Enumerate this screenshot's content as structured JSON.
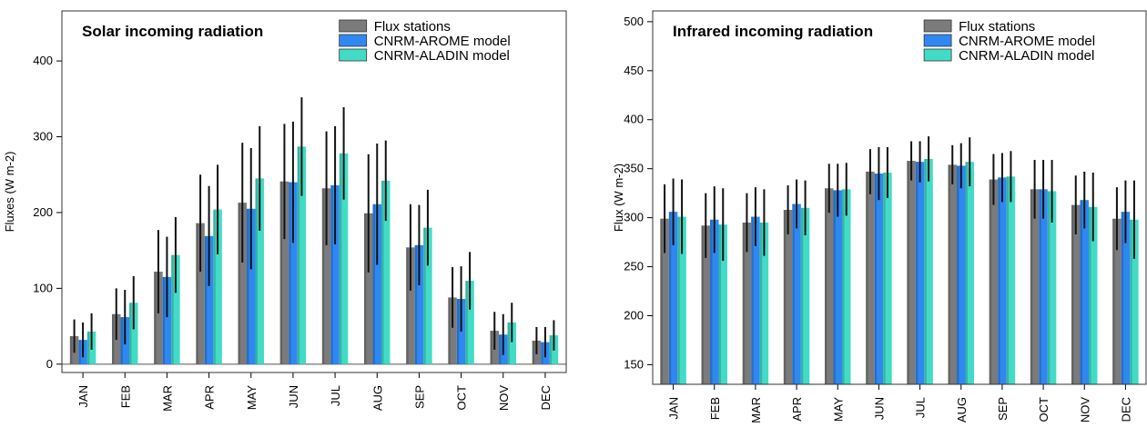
{
  "chart_data": [
    {
      "type": "bar",
      "title": "Solar incoming radiation",
      "ylabel": "Fluxes (W m-2)",
      "categories": [
        "JAN",
        "FEB",
        "MAR",
        "APR",
        "MAY",
        "JUN",
        "JUL",
        "AUG",
        "SEP",
        "OCT",
        "NOV",
        "DEC"
      ],
      "series": [
        {
          "name": "Flux stations",
          "color": "#7b7b7b",
          "values": [
            37,
            66,
            122,
            186,
            213,
            241,
            232,
            199,
            154,
            88,
            44,
            31
          ],
          "errors": [
            22,
            34,
            55,
            64,
            79,
            76,
            75,
            78,
            57,
            40,
            25,
            18
          ]
        },
        {
          "name": "CNRM-AROME model",
          "color": "#2f88f2",
          "values": [
            32,
            62,
            115,
            169,
            205,
            240,
            236,
            211,
            157,
            86,
            39,
            29
          ],
          "errors": [
            23,
            36,
            53,
            66,
            80,
            80,
            78,
            80,
            53,
            43,
            27,
            20
          ]
        },
        {
          "name": "CNRM-ALADIN model",
          "color": "#42dcc6",
          "values": [
            43,
            81,
            144,
            204,
            245,
            287,
            278,
            242,
            180,
            110,
            55,
            38
          ],
          "errors": [
            24,
            35,
            50,
            59,
            69,
            65,
            61,
            53,
            50,
            38,
            26,
            20
          ]
        }
      ],
      "ylim": [
        -11,
        466
      ],
      "yticks": [
        0,
        100,
        200,
        300,
        400
      ],
      "legend": "upper right"
    },
    {
      "type": "bar",
      "title": "Infrared incoming radiation",
      "ylabel": "Flux (W m-2)",
      "categories": [
        "JAN",
        "FEB",
        "MAR",
        "APR",
        "MAY",
        "JUN",
        "JUL",
        "AUG",
        "SEP",
        "OCT",
        "NOV",
        "DEC"
      ],
      "series": [
        {
          "name": "Flux stations",
          "color": "#7b7b7b",
          "values": [
            299,
            292,
            295,
            308,
            330,
            347,
            358,
            354,
            339,
            329,
            313,
            299
          ],
          "errors": [
            35,
            33,
            30,
            25,
            25,
            23,
            20,
            20,
            26,
            30,
            30,
            32
          ]
        },
        {
          "name": "CNRM-AROME model",
          "color": "#2f88f2",
          "values": [
            306,
            298,
            301,
            314,
            328,
            345,
            357,
            353,
            341,
            329,
            318,
            306
          ],
          "errors": [
            34,
            34,
            30,
            25,
            27,
            27,
            21,
            23,
            25,
            30,
            29,
            32
          ]
        },
        {
          "name": "CNRM-ALADIN model",
          "color": "#42dcc6",
          "values": [
            301,
            293,
            295,
            310,
            329,
            346,
            360,
            357,
            342,
            327,
            311,
            298
          ],
          "errors": [
            38,
            37,
            34,
            28,
            27,
            26,
            23,
            25,
            26,
            32,
            35,
            40
          ]
        }
      ],
      "ylim": [
        130,
        511
      ],
      "yticks": [
        150,
        200,
        250,
        300,
        350,
        400,
        450,
        500
      ],
      "legend": "upper right"
    }
  ]
}
